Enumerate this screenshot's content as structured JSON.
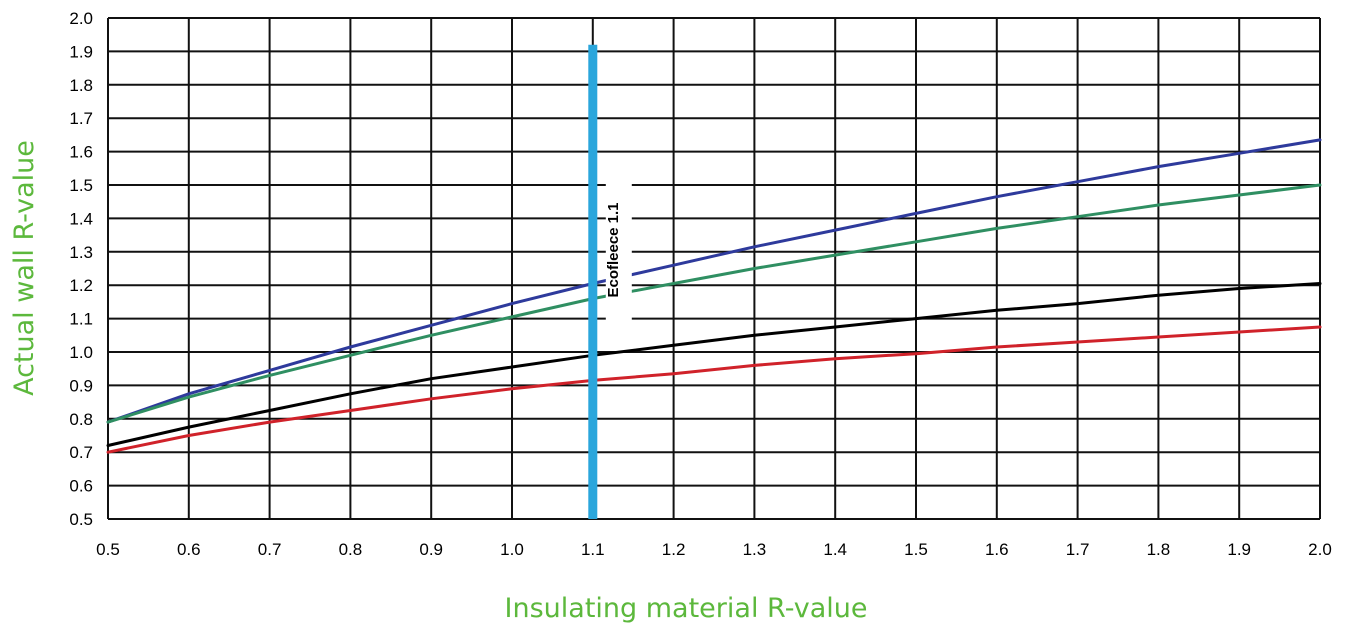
{
  "chart_data": {
    "type": "line",
    "xlabel": "Insulating material R-value",
    "ylabel": "Actual wall R-value",
    "xlim": [
      0.5,
      2.0
    ],
    "ylim": [
      0.5,
      2.0
    ],
    "x_ticks": [
      "0.5",
      "0.6",
      "0.7",
      "0.8",
      "0.9",
      "1.0",
      "1.1",
      "1.2",
      "1.3",
      "1.4",
      "1.5",
      "1.6",
      "1.7",
      "1.8",
      "1.9",
      "2.0"
    ],
    "y_ticks": [
      "0.5",
      "0.6",
      "0.7",
      "0.8",
      "0.9",
      "1.0",
      "1.1",
      "1.2",
      "1.3",
      "1.4",
      "1.5",
      "1.6",
      "1.7",
      "1.8",
      "1.9",
      "2.0"
    ],
    "grid": true,
    "x": [
      0.5,
      0.6,
      0.7,
      0.8,
      0.9,
      1.0,
      1.1,
      1.2,
      1.3,
      1.4,
      1.5,
      1.6,
      1.7,
      1.8,
      1.9,
      2.0
    ],
    "series": [
      {
        "color": "#2e3a9c",
        "values": [
          0.79,
          0.875,
          0.945,
          1.015,
          1.08,
          1.145,
          1.205,
          1.26,
          1.315,
          1.365,
          1.415,
          1.465,
          1.51,
          1.555,
          1.595,
          1.635
        ]
      },
      {
        "color": "#2f8f62",
        "values": [
          0.79,
          0.865,
          0.93,
          0.99,
          1.05,
          1.105,
          1.16,
          1.205,
          1.25,
          1.29,
          1.33,
          1.37,
          1.405,
          1.44,
          1.47,
          1.5
        ]
      },
      {
        "color": "#000000",
        "values": [
          0.72,
          0.775,
          0.825,
          0.875,
          0.92,
          0.955,
          0.99,
          1.02,
          1.05,
          1.075,
          1.1,
          1.125,
          1.145,
          1.17,
          1.19,
          1.205
        ]
      },
      {
        "color": "#d0222a",
        "values": [
          0.7,
          0.75,
          0.79,
          0.825,
          0.86,
          0.89,
          0.915,
          0.935,
          0.96,
          0.98,
          0.995,
          1.015,
          1.03,
          1.045,
          1.06,
          1.075
        ]
      }
    ],
    "marker": {
      "x": 1.1,
      "y_top": 1.92,
      "label": "Ecofleece 1.1",
      "color": "#2aa6dc"
    },
    "label_color": "#5cb83c"
  }
}
